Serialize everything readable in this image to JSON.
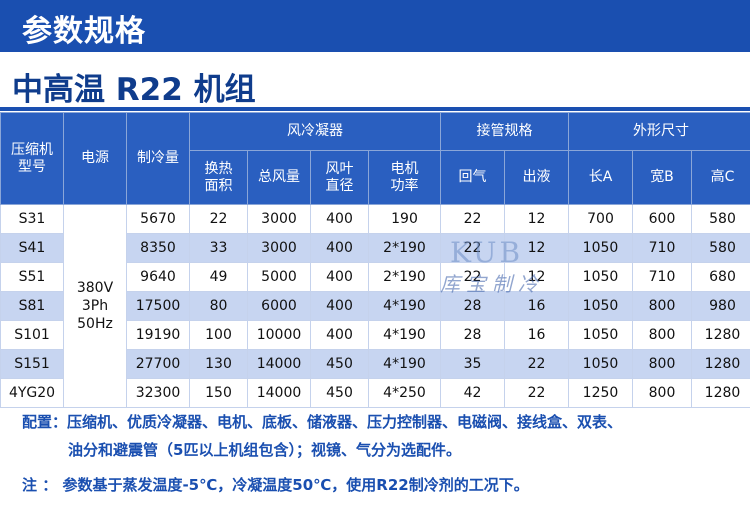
{
  "banner": {
    "title": "参数规格"
  },
  "subtitle": "中高温 R22 机组",
  "table": {
    "group_headers": {
      "model": "压缩机\n型号",
      "power": "电源",
      "capacity": "制冷量",
      "condenser": "风冷凝器",
      "pipe": "接管规格",
      "dimensions": "外形尺寸"
    },
    "sub_headers": {
      "heat_area": "换热\n面积",
      "airflow": "总风量",
      "fan_dia": "风叶\n直径",
      "motor_power": "电机\n功率",
      "return_gas": "回气",
      "liquid_out": "出液",
      "length": "长A",
      "width": "宽B",
      "height": "高C"
    },
    "power_value": "380V\n3Ph\n50Hz",
    "rows": [
      {
        "model": "S31",
        "capacity": "5670",
        "area": "22",
        "airflow": "3000",
        "fan": "400",
        "motor": "190",
        "ret": "22",
        "liq": "12",
        "l": "700",
        "w": "600",
        "h": "580"
      },
      {
        "model": "S41",
        "capacity": "8350",
        "area": "33",
        "airflow": "3000",
        "fan": "400",
        "motor": "2*190",
        "ret": "22",
        "liq": "12",
        "l": "1050",
        "w": "710",
        "h": "580"
      },
      {
        "model": "S51",
        "capacity": "9640",
        "area": "49",
        "airflow": "5000",
        "fan": "400",
        "motor": "2*190",
        "ret": "22",
        "liq": "12",
        "l": "1050",
        "w": "710",
        "h": "680"
      },
      {
        "model": "S81",
        "capacity": "17500",
        "area": "80",
        "airflow": "6000",
        "fan": "400",
        "motor": "4*190",
        "ret": "28",
        "liq": "16",
        "l": "1050",
        "w": "800",
        "h": "980"
      },
      {
        "model": "S101",
        "capacity": "19190",
        "area": "100",
        "airflow": "10000",
        "fan": "400",
        "motor": "4*190",
        "ret": "28",
        "liq": "16",
        "l": "1050",
        "w": "800",
        "h": "1280"
      },
      {
        "model": "S151",
        "capacity": "27700",
        "area": "130",
        "airflow": "14000",
        "fan": "450",
        "motor": "4*190",
        "ret": "35",
        "liq": "22",
        "l": "1050",
        "w": "800",
        "h": "1280"
      },
      {
        "model": "4YG20",
        "capacity": "32300",
        "area": "150",
        "airflow": "14000",
        "fan": "450",
        "motor": "4*250",
        "ret": "42",
        "liq": "22",
        "l": "1250",
        "w": "800",
        "h": "1280"
      }
    ]
  },
  "watermark": {
    "logo": "KUB",
    "text": "库宝制冷"
  },
  "notes": {
    "config_line1": "配置：压缩机、优质冷凝器、电机、底板、储液器、压力控制器、电磁阀、接线盒、双表、",
    "config_line2": "油分和避震管（5匹以上机组包含）；视镜、气分为选配件。",
    "note": "注 ： 参数基于蒸发温度-5℃，冷凝温度50℃，使用R22制冷剂的工况下。"
  }
}
